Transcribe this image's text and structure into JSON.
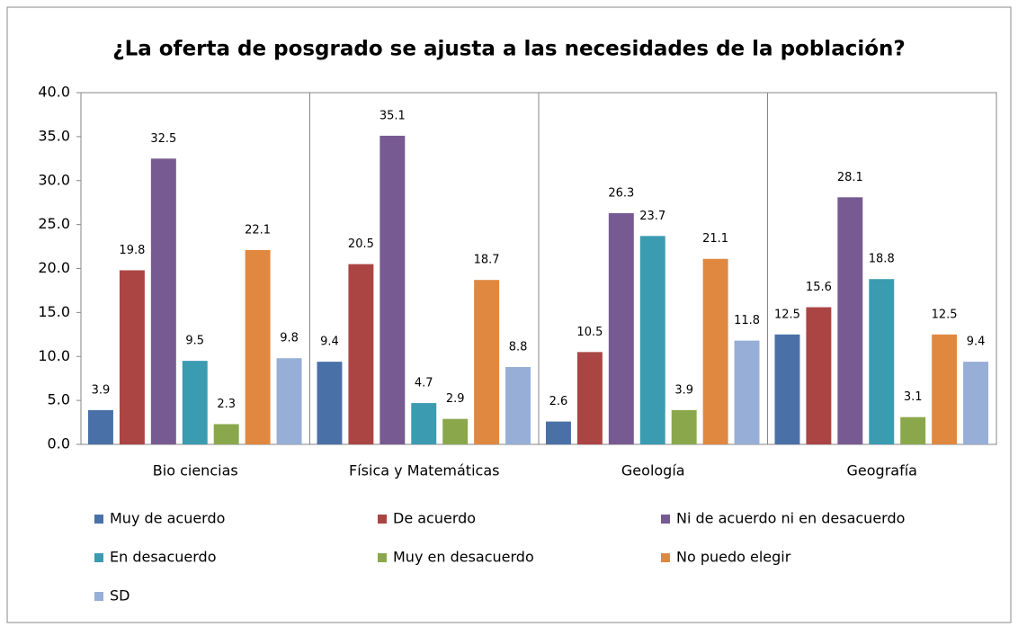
{
  "chart_data": {
    "type": "bar",
    "title": "¿La oferta de posgrado se ajusta a las necesidades de la población?",
    "categories": [
      "Bio ciencias",
      "Física y Matemáticas",
      "Geología",
      "Geografía"
    ],
    "series": [
      {
        "name": "Muy de acuerdo",
        "color": "#4a70a8",
        "values": [
          3.9,
          9.4,
          2.6,
          12.5
        ]
      },
      {
        "name": "De acuerdo",
        "color": "#ab4543",
        "values": [
          19.8,
          20.5,
          10.5,
          15.6
        ]
      },
      {
        "name": "Ni de acuerdo ni en desacuerdo",
        "color": "#775a92",
        "values": [
          32.5,
          35.1,
          26.3,
          28.1
        ]
      },
      {
        "name": "En desacuerdo",
        "color": "#3b9bb1",
        "values": [
          9.5,
          4.7,
          23.7,
          18.8
        ]
      },
      {
        "name": "Muy en desacuerdo",
        "color": "#8aa84b",
        "values": [
          2.3,
          2.9,
          3.9,
          3.1
        ]
      },
      {
        "name": "No puedo elegir",
        "color": "#e0883f",
        "values": [
          22.1,
          18.7,
          21.1,
          12.5
        ]
      },
      {
        "name": "SD",
        "color": "#97aed6",
        "values": [
          9.8,
          8.8,
          11.8,
          9.4
        ]
      }
    ],
    "ylim": [
      0,
      40
    ],
    "yticks": [
      {
        "value": 0,
        "label": "0.0"
      },
      {
        "value": 5,
        "label": "5.0"
      },
      {
        "value": 10,
        "label": "10.0"
      },
      {
        "value": 15,
        "label": "15.0"
      },
      {
        "value": 20,
        "label": "20.0"
      },
      {
        "value": 25,
        "label": "25.0"
      },
      {
        "value": 30,
        "label": "30.0"
      },
      {
        "value": 35,
        "label": "35.0"
      },
      {
        "value": 40,
        "label": "40.0"
      }
    ],
    "grid": false,
    "legend": "bottom"
  }
}
